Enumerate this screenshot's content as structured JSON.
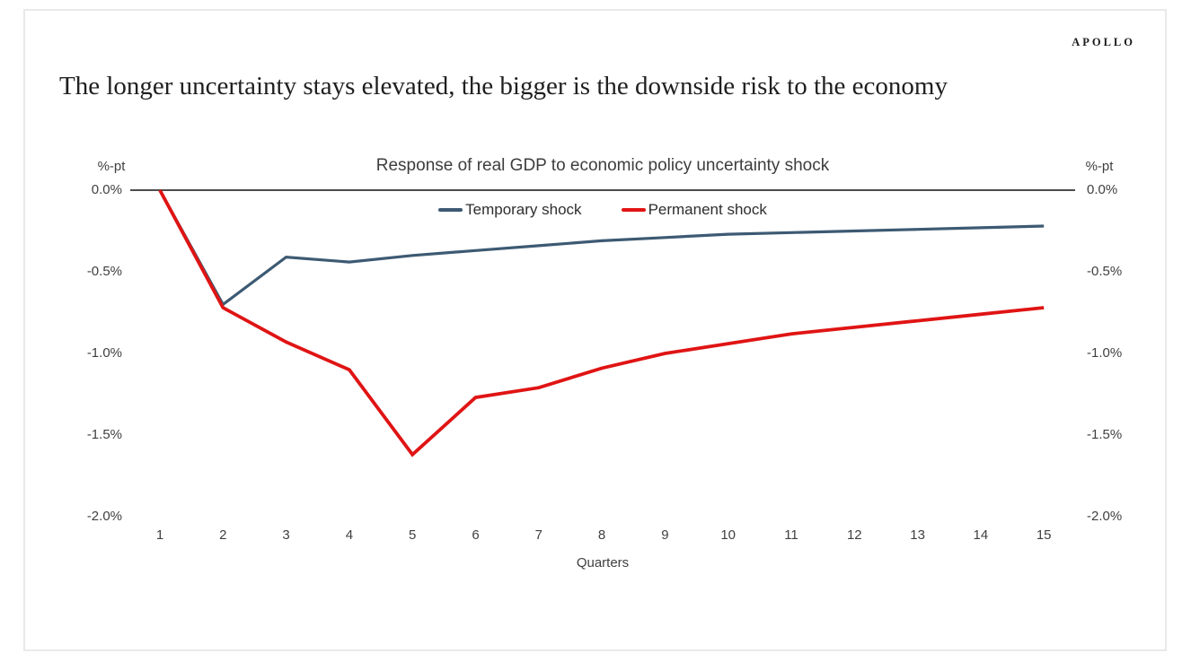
{
  "brand": {
    "logo_text": "APOLLO"
  },
  "headline": "The longer uncertainty stays elevated, the bigger is the downside risk to the economy",
  "chart_data": {
    "type": "line",
    "title": "Response of real GDP to economic policy uncertainty shock",
    "xlabel": "Quarters",
    "ylabel_left": "%-pt",
    "ylabel_right": "%-pt",
    "x": [
      1,
      2,
      3,
      4,
      5,
      6,
      7,
      8,
      9,
      10,
      11,
      12,
      13,
      14,
      15
    ],
    "xlim": [
      1,
      15
    ],
    "ylim": [
      -2.0,
      0.0
    ],
    "y_ticks": [
      {
        "label": "0.0%",
        "value": 0.0
      },
      {
        "label": "-0.5%",
        "value": -0.5
      },
      {
        "label": "-1.0%",
        "value": -1.0
      },
      {
        "label": "-1.5%",
        "value": -1.5
      },
      {
        "label": "-2.0%",
        "value": -2.0
      }
    ],
    "grid": false,
    "legend_position": "top-center",
    "axis_line_color": "#4c4c4c",
    "series": [
      {
        "name": "Temporary shock",
        "color": "#3d5a73",
        "values": [
          0.0,
          -0.7,
          -0.41,
          -0.44,
          -0.4,
          -0.37,
          -0.34,
          -0.31,
          -0.29,
          -0.27,
          -0.26,
          -0.25,
          -0.24,
          -0.23,
          -0.22
        ]
      },
      {
        "name": "Permanent shock",
        "color": "#e01414",
        "values": [
          0.0,
          -0.72,
          -0.93,
          -1.1,
          -1.62,
          -1.27,
          -1.21,
          -1.09,
          -1.0,
          -0.94,
          -0.88,
          -0.84,
          -0.8,
          -0.76,
          -0.72
        ]
      }
    ]
  }
}
